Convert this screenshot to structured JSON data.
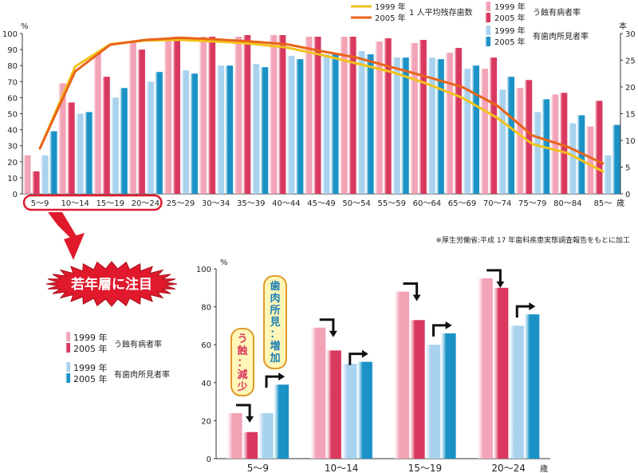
{
  "colors": {
    "caries_1999": "#f2a3b6",
    "caries_2005": "#d9385f",
    "gum_1999": "#a9d2ee",
    "gum_2005": "#1b92c6",
    "line_1999": "#f2c21c",
    "line_2005": "#e8641b",
    "highlight": "#e0192d"
  },
  "chart_data": [
    {
      "type": "bar",
      "title": "",
      "ylabel_left": "%",
      "ylabel_right": "本",
      "x_unit": "歳",
      "ylim_left": [
        0,
        100
      ],
      "ylim_right": [
        0,
        30
      ],
      "yticks_left": [
        "0",
        "10",
        "20",
        "30",
        "40",
        "50",
        "60",
        "70",
        "80",
        "90",
        "100"
      ],
      "yticks_right": [
        "0",
        "5",
        "10",
        "15",
        "20",
        "25",
        "30"
      ],
      "categories": [
        "5～9",
        "10～14",
        "15～19",
        "20～24",
        "25～29",
        "30～34",
        "35～39",
        "40～44",
        "45～49",
        "50～54",
        "55～59",
        "60～64",
        "65～69",
        "70～74",
        "75～79",
        "80～84",
        "85～"
      ],
      "series": [
        {
          "name": "1999 年 う蝕有病者率",
          "group": "う蝕有病者率",
          "year": "1999 年",
          "color_key": "caries_1999",
          "values": [
            24,
            69,
            88,
            95,
            97,
            98,
            98,
            99,
            98,
            98,
            95,
            94,
            88,
            78,
            66,
            62,
            42
          ]
        },
        {
          "name": "2005 年 う蝕有病者率",
          "group": "う蝕有病者率",
          "year": "2005 年",
          "color_key": "caries_2005",
          "values": [
            14,
            57,
            73,
            90,
            98,
            98,
            99,
            99,
            98,
            98,
            97,
            96,
            91,
            85,
            71,
            63,
            58
          ]
        },
        {
          "name": "1999 年 有歯肉所見者率",
          "group": "有歯肉所見者率",
          "year": "1999 年",
          "color_key": "gum_1999",
          "values": [
            24,
            50,
            60,
            70,
            77,
            80,
            81,
            86,
            87,
            89,
            85,
            85,
            78,
            65,
            51,
            44,
            24
          ]
        },
        {
          "name": "2005 年 有歯肉所見者率",
          "group": "有歯肉所見者率",
          "year": "2005 年",
          "color_key": "gum_2005",
          "values": [
            39,
            51,
            66,
            76,
            75,
            80,
            79,
            84,
            87,
            87,
            85,
            84,
            80,
            73,
            59,
            49,
            43
          ]
        }
      ],
      "lines": [
        {
          "name": "1999 年",
          "color_key": "line_1999",
          "values": [
            8.5,
            23.8,
            28.0,
            28.7,
            28.8,
            28.5,
            28.1,
            27.4,
            26.0,
            24.4,
            22.8,
            20.6,
            18.0,
            14.2,
            9.3,
            7.6,
            4.2
          ]
        },
        {
          "name": "2005 年",
          "color_key": "line_2005",
          "values": [
            8.5,
            22.9,
            27.9,
            28.8,
            29.2,
            28.9,
            28.5,
            28.0,
            26.7,
            25.5,
            23.7,
            21.9,
            20.0,
            16.5,
            10.9,
            8.8,
            5.7
          ]
        }
      ],
      "line_legend_title": "1 人平均残存歯数",
      "legend": [
        {
          "label": "1999 年",
          "color_key": "line_1999",
          "kind": "line"
        },
        {
          "label": "2005 年",
          "color_key": "line_2005",
          "kind": "line"
        },
        {
          "label": "1999 年",
          "color_key": "caries_1999",
          "kind": "bar"
        },
        {
          "label": "2005 年",
          "color_key": "caries_2005",
          "kind": "bar"
        },
        {
          "label": "1999 年",
          "color_key": "gum_1999",
          "kind": "bar"
        },
        {
          "label": "2005 年",
          "color_key": "gum_2005",
          "kind": "bar"
        }
      ],
      "legend_group_labels": {
        "caries": "う蝕有病者率",
        "gum": "有歯肉所見者率"
      },
      "legend_placement": "top-right",
      "highlight_categories": [
        "5～9",
        "10～14",
        "15～19",
        "20～24"
      ],
      "grid": false
    },
    {
      "type": "bar",
      "title": "",
      "ylabel": "%",
      "x_unit": "歳",
      "ylim": [
        0,
        100
      ],
      "yticks": [
        "0",
        "20",
        "40",
        "60",
        "80",
        "100"
      ],
      "categories": [
        "5～9",
        "10～14",
        "15～19",
        "20～24"
      ],
      "series": [
        {
          "name": "1999 年 う蝕有病者率",
          "color_key": "caries_1999",
          "values": [
            24,
            69,
            88,
            95
          ]
        },
        {
          "name": "2005 年 う蝕有病者率",
          "color_key": "caries_2005",
          "values": [
            14,
            57,
            73,
            90
          ]
        },
        {
          "name": "1999 年 有歯肉所見者率",
          "color_key": "gum_1999",
          "values": [
            24,
            50,
            60,
            70
          ]
        },
        {
          "name": "2005 年 有歯肉所見者率",
          "color_key": "gum_2005",
          "values": [
            39,
            51,
            66,
            76
          ]
        }
      ],
      "legend": [
        {
          "label": "1999 年",
          "color_key": "caries_1999",
          "group": "う蝕有病者率"
        },
        {
          "label": "2005 年",
          "color_key": "caries_2005",
          "group": "う蝕有病者率"
        },
        {
          "label": "1999 年",
          "color_key": "gum_1999",
          "group": "有歯肉所見者率"
        },
        {
          "label": "2005 年",
          "color_key": "gum_2005",
          "group": "有歯肉所見者率"
        }
      ],
      "legend_placement": "left",
      "grid": false
    }
  ],
  "annotations": {
    "callout": "若年層に注目",
    "caries_note": "う蝕：減少",
    "gum_note": "歯肉所見：増加",
    "source": "※厚生労働省:平成 17 年歯科疾患実態調査報告をもとに加工"
  }
}
